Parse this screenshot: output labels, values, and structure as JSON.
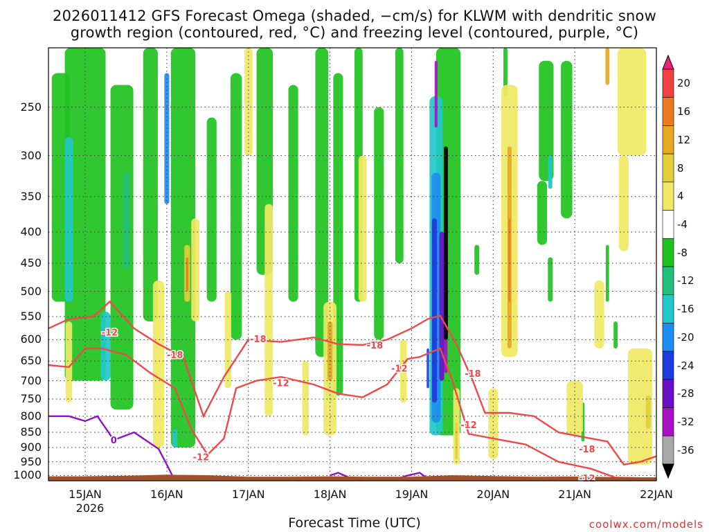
{
  "title_line1": "2026011412 GFS Forecast Omega (shaded, −cm/s) for KLWM with dendritic snow",
  "title_line2": "growth region (contoured, red, °C) and freezing level (contoured, purple, °C)",
  "credit": "coolwx.com/models",
  "chart_data": {
    "type": "heatmap",
    "xlabel": "Forecast Time (UTC)",
    "ylabel": "",
    "x_ticks": [
      "15JAN",
      "16JAN",
      "17JAN",
      "18JAN",
      "19JAN",
      "20JAN",
      "21JAN",
      "22JAN"
    ],
    "x_year": "2026",
    "xlim_days": [
      14.55,
      22.0
    ],
    "y_scale": "log-pressure",
    "y_ticks_hpa": [
      250,
      300,
      350,
      400,
      450,
      500,
      550,
      600,
      650,
      700,
      750,
      800,
      850,
      900,
      950,
      1000
    ],
    "ylim_hpa": [
      200,
      1020
    ],
    "colorbar_ticks": [
      20,
      16,
      12,
      8,
      4,
      -4,
      -8,
      -12,
      -16,
      -20,
      -24,
      -28,
      -32,
      -36
    ],
    "colorbar_colors": [
      "#e8227a",
      "#f04040",
      "#ea7c1e",
      "#e6a81e",
      "#e2cf3a",
      "#f0e864",
      "#ffffff",
      "#1fc21f",
      "#22c07a",
      "#22c8c8",
      "#1e8cf0",
      "#1e3cdc",
      "#6a10c8",
      "#a810c8",
      "#a8a8a8",
      "#000000"
    ],
    "colors": {
      "dgz": "#f04848",
      "freezing": "#9010c8",
      "terrain": "#a0522d"
    },
    "contour_labels": [
      {
        "text": "-12",
        "day": 15.3,
        "p": 583
      },
      {
        "text": "-18",
        "day": 16.1,
        "p": 635
      },
      {
        "text": "-12",
        "day": 16.42,
        "p": 932
      },
      {
        "text": "-18",
        "day": 17.12,
        "p": 598
      },
      {
        "text": "-12",
        "day": 17.4,
        "p": 705
      },
      {
        "text": "-18",
        "day": 18.55,
        "p": 612
      },
      {
        "text": "-12",
        "day": 18.85,
        "p": 668
      },
      {
        "text": "-18",
        "day": 19.75,
        "p": 681
      },
      {
        "text": "-12",
        "day": 19.7,
        "p": 826
      },
      {
        "text": "-18",
        "day": 21.15,
        "p": 905
      },
      {
        "text": "-12",
        "day": 21.15,
        "p": 1010
      },
      {
        "text": "0",
        "day": 15.35,
        "p": 875
      }
    ]
  }
}
